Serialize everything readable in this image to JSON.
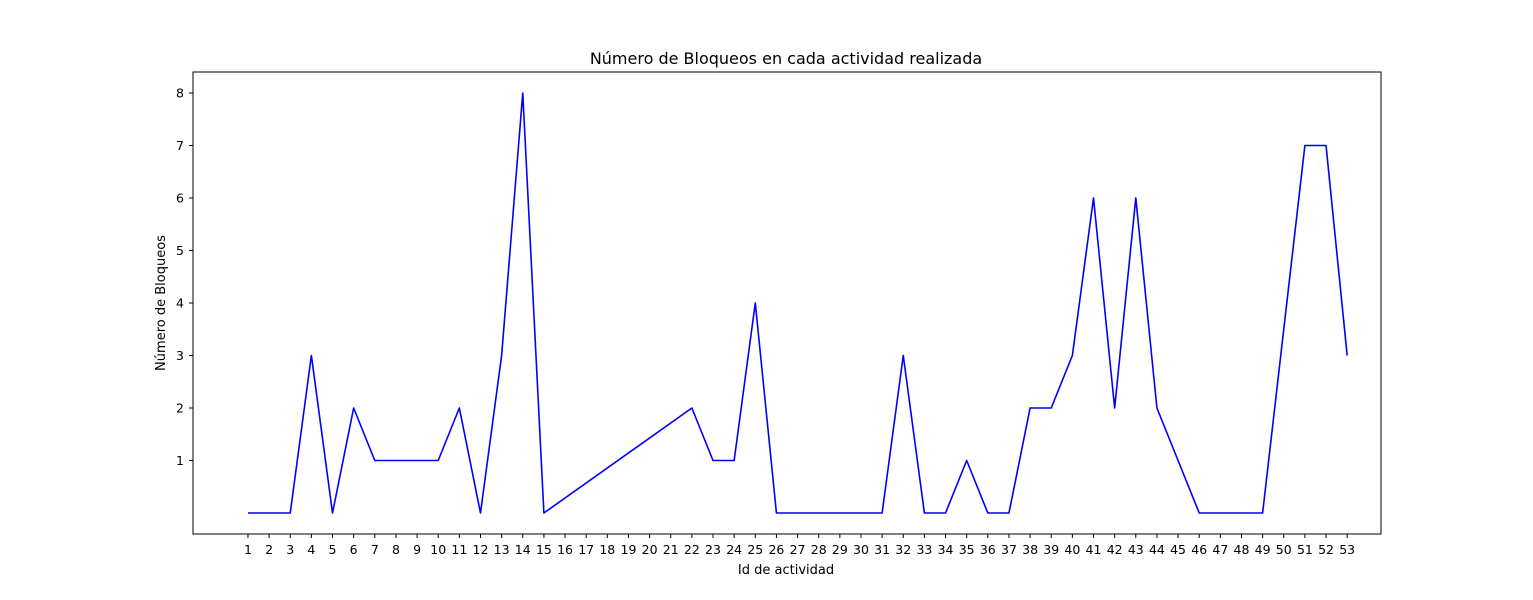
{
  "chart_data": {
    "type": "line",
    "title": "Número de Bloqueos en cada actividad realizada",
    "xlabel": "Id de actividad",
    "ylabel": "Número de Bloqueos",
    "grid": false,
    "legend": "none",
    "line_color": "#0000ff",
    "xlim": [
      -1.6,
      54.6
    ],
    "ylim": [
      -0.4,
      8.4
    ],
    "x_ticks": [
      "1",
      "2",
      "3",
      "4",
      "5",
      "6",
      "7",
      "8",
      "9",
      "10",
      "11",
      "12",
      "13",
      "14",
      "15",
      "16",
      "17",
      "18",
      "19",
      "20",
      "21",
      "22",
      "23",
      "24",
      "25",
      "26",
      "27",
      "28",
      "29",
      "30",
      "31",
      "32",
      "33",
      "34",
      "35",
      "36",
      "37",
      "38",
      "39",
      "40",
      "41",
      "42",
      "43",
      "44",
      "45",
      "46",
      "47",
      "48",
      "49",
      "50",
      "51",
      "52",
      "53"
    ],
    "y_ticks": [
      1,
      2,
      3,
      4,
      5,
      6,
      7,
      8
    ],
    "series": [
      {
        "name": "Número de Bloqueos",
        "x": [
          1,
          2,
          3,
          4,
          5,
          6,
          7,
          8,
          9,
          10,
          11,
          12,
          13,
          14,
          15,
          22,
          23,
          24,
          25,
          26,
          27,
          28,
          29,
          30,
          31,
          32,
          33,
          34,
          35,
          36,
          37,
          38,
          39,
          40,
          41,
          42,
          43,
          44,
          46,
          47,
          48,
          49,
          51,
          52,
          53
        ],
        "y": [
          0,
          0,
          0,
          3,
          0,
          2,
          1,
          1,
          1,
          1,
          2,
          0,
          3,
          8,
          0,
          2,
          1,
          1,
          4,
          0,
          0,
          0,
          0,
          0,
          0,
          3,
          0,
          0,
          1,
          0,
          0,
          2,
          2,
          3,
          6,
          2,
          6,
          2,
          0,
          0,
          0,
          0,
          7,
          7,
          3
        ]
      }
    ]
  }
}
